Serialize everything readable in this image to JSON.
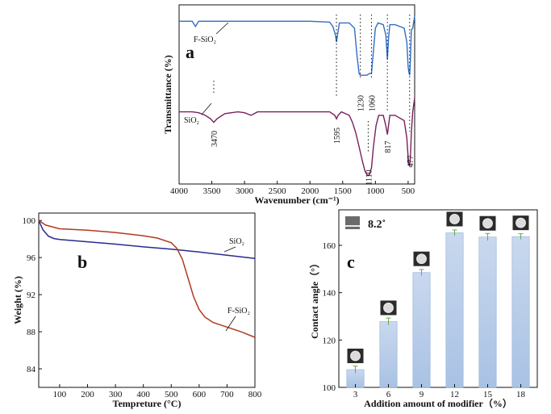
{
  "chart_data": [
    {
      "panel": "a",
      "type": "line",
      "xlabel": "Wavenumber (cm⁻¹)",
      "ylabel": "Transmittance (%)",
      "xlim": [
        4000,
        400
      ],
      "xticks": [
        4000,
        3500,
        3000,
        2500,
        2000,
        1500,
        1000,
        500
      ],
      "series": [
        {
          "name": "F-SiO₂",
          "color": "#2f6fc4",
          "points": [
            [
              4000,
              92
            ],
            [
              3800,
              92
            ],
            [
              3750,
              89
            ],
            [
              3700,
              92
            ],
            [
              3000,
              92
            ],
            [
              2000,
              92
            ],
            [
              1700,
              91.5
            ],
            [
              1650,
              89
            ],
            [
              1610,
              84
            ],
            [
              1595,
              80
            ],
            [
              1580,
              84
            ],
            [
              1550,
              91
            ],
            [
              1400,
              91
            ],
            [
              1320,
              88
            ],
            [
              1280,
              72
            ],
            [
              1250,
              62
            ],
            [
              1230,
              61
            ],
            [
              1180,
              61
            ],
            [
              1130,
              61
            ],
            [
              1090,
              62
            ],
            [
              1060,
              62
            ],
            [
              1030,
              75
            ],
            [
              1000,
              88
            ],
            [
              960,
              91
            ],
            [
              880,
              90
            ],
            [
              840,
              84
            ],
            [
              817,
              70
            ],
            [
              800,
              82
            ],
            [
              780,
              90
            ],
            [
              700,
              90
            ],
            [
              560,
              88
            ],
            [
              520,
              80
            ],
            [
              500,
              66
            ],
            [
              490,
              63
            ],
            [
              477,
              61
            ],
            [
              465,
              70
            ],
            [
              450,
              87
            ],
            [
              430,
              88
            ],
            [
              400,
              95
            ]
          ]
        },
        {
          "name": "SiO₂",
          "color": "#7a1f5e",
          "points": [
            [
              4000,
              40
            ],
            [
              3800,
              40
            ],
            [
              3700,
              39.5
            ],
            [
              3600,
              38
            ],
            [
              3520,
              36
            ],
            [
              3470,
              34
            ],
            [
              3420,
              36
            ],
            [
              3300,
              39
            ],
            [
              3100,
              40
            ],
            [
              3000,
              39.5
            ],
            [
              2900,
              38
            ],
            [
              2850,
              39
            ],
            [
              2800,
              40
            ],
            [
              2000,
              40
            ],
            [
              1700,
              40
            ],
            [
              1620,
              38
            ],
            [
              1595,
              36
            ],
            [
              1570,
              38
            ],
            [
              1520,
              40
            ],
            [
              1400,
              38
            ],
            [
              1350,
              34
            ],
            [
              1300,
              28
            ],
            [
              1250,
              20
            ],
            [
              1200,
              12
            ],
            [
              1160,
              6
            ],
            [
              1130,
              4
            ],
            [
              1110,
              3.5
            ],
            [
              1090,
              4
            ],
            [
              1060,
              8
            ],
            [
              1030,
              20
            ],
            [
              990,
              32
            ],
            [
              950,
              38
            ],
            [
              880,
              38
            ],
            [
              840,
              32
            ],
            [
              817,
              27
            ],
            [
              800,
              32
            ],
            [
              780,
              38
            ],
            [
              700,
              38
            ],
            [
              560,
              35
            ],
            [
              520,
              25
            ],
            [
              500,
              14
            ],
            [
              490,
              10
            ],
            [
              477,
              9
            ],
            [
              465,
              14
            ],
            [
              450,
              28
            ],
            [
              430,
              40
            ],
            [
              400,
              48
            ]
          ]
        }
      ],
      "peaks": {
        "sio2": [
          "3470",
          "1595",
          "1110",
          "817",
          "477"
        ],
        "fsio2": [
          "1230",
          "1060"
        ]
      },
      "ylim": [
        0,
        100
      ]
    },
    {
      "panel": "b",
      "type": "line",
      "xlabel": "Tempreture (°C)",
      "ylabel": "Weight (%)",
      "xlim": [
        25,
        800
      ],
      "ylim": [
        82,
        100.8
      ],
      "xticks": [
        100,
        200,
        300,
        400,
        500,
        600,
        700,
        800
      ],
      "yticks": [
        84,
        88,
        92,
        96,
        100
      ],
      "series": [
        {
          "name": "SiO₂",
          "color": "#2a2a8c",
          "points": [
            [
              25,
              100
            ],
            [
              40,
              99
            ],
            [
              60,
              98.3
            ],
            [
              80,
              98.05
            ],
            [
              100,
              97.95
            ],
            [
              200,
              97.7
            ],
            [
              300,
              97.45
            ],
            [
              400,
              97.15
            ],
            [
              500,
              96.9
            ],
            [
              600,
              96.6
            ],
            [
              700,
              96.25
            ],
            [
              800,
              95.9
            ]
          ]
        },
        {
          "name": "F-SiO₂",
          "color": "#b23a1f",
          "points": [
            [
              25,
              100
            ],
            [
              50,
              99.5
            ],
            [
              100,
              99.1
            ],
            [
              200,
              98.95
            ],
            [
              300,
              98.7
            ],
            [
              400,
              98.35
            ],
            [
              450,
              98.1
            ],
            [
              500,
              97.6
            ],
            [
              520,
              97.0
            ],
            [
              540,
              95.8
            ],
            [
              560,
              93.8
            ],
            [
              580,
              91.8
            ],
            [
              600,
              90.4
            ],
            [
              620,
              89.6
            ],
            [
              650,
              89.0
            ],
            [
              700,
              88.5
            ],
            [
              750,
              88.0
            ],
            [
              800,
              87.4
            ]
          ]
        }
      ]
    },
    {
      "panel": "c",
      "type": "bar",
      "xlabel": "Addition amount of modifier（%）",
      "ylabel": "Contact angle（°）",
      "categories": [
        "3",
        "6",
        "9",
        "12",
        "15",
        "18"
      ],
      "values": [
        107.5,
        127.8,
        148.5,
        165.3,
        163.5,
        163.7
      ],
      "errors": [
        1.5,
        1.5,
        1.3,
        1.2,
        1.5,
        1.2
      ],
      "ylim": [
        100,
        175
      ],
      "yticks": [
        100,
        120,
        140,
        160
      ],
      "reference_label": "8.2˚",
      "bar_color": "#a9c2e4",
      "error_color": "#6aa84f"
    }
  ]
}
